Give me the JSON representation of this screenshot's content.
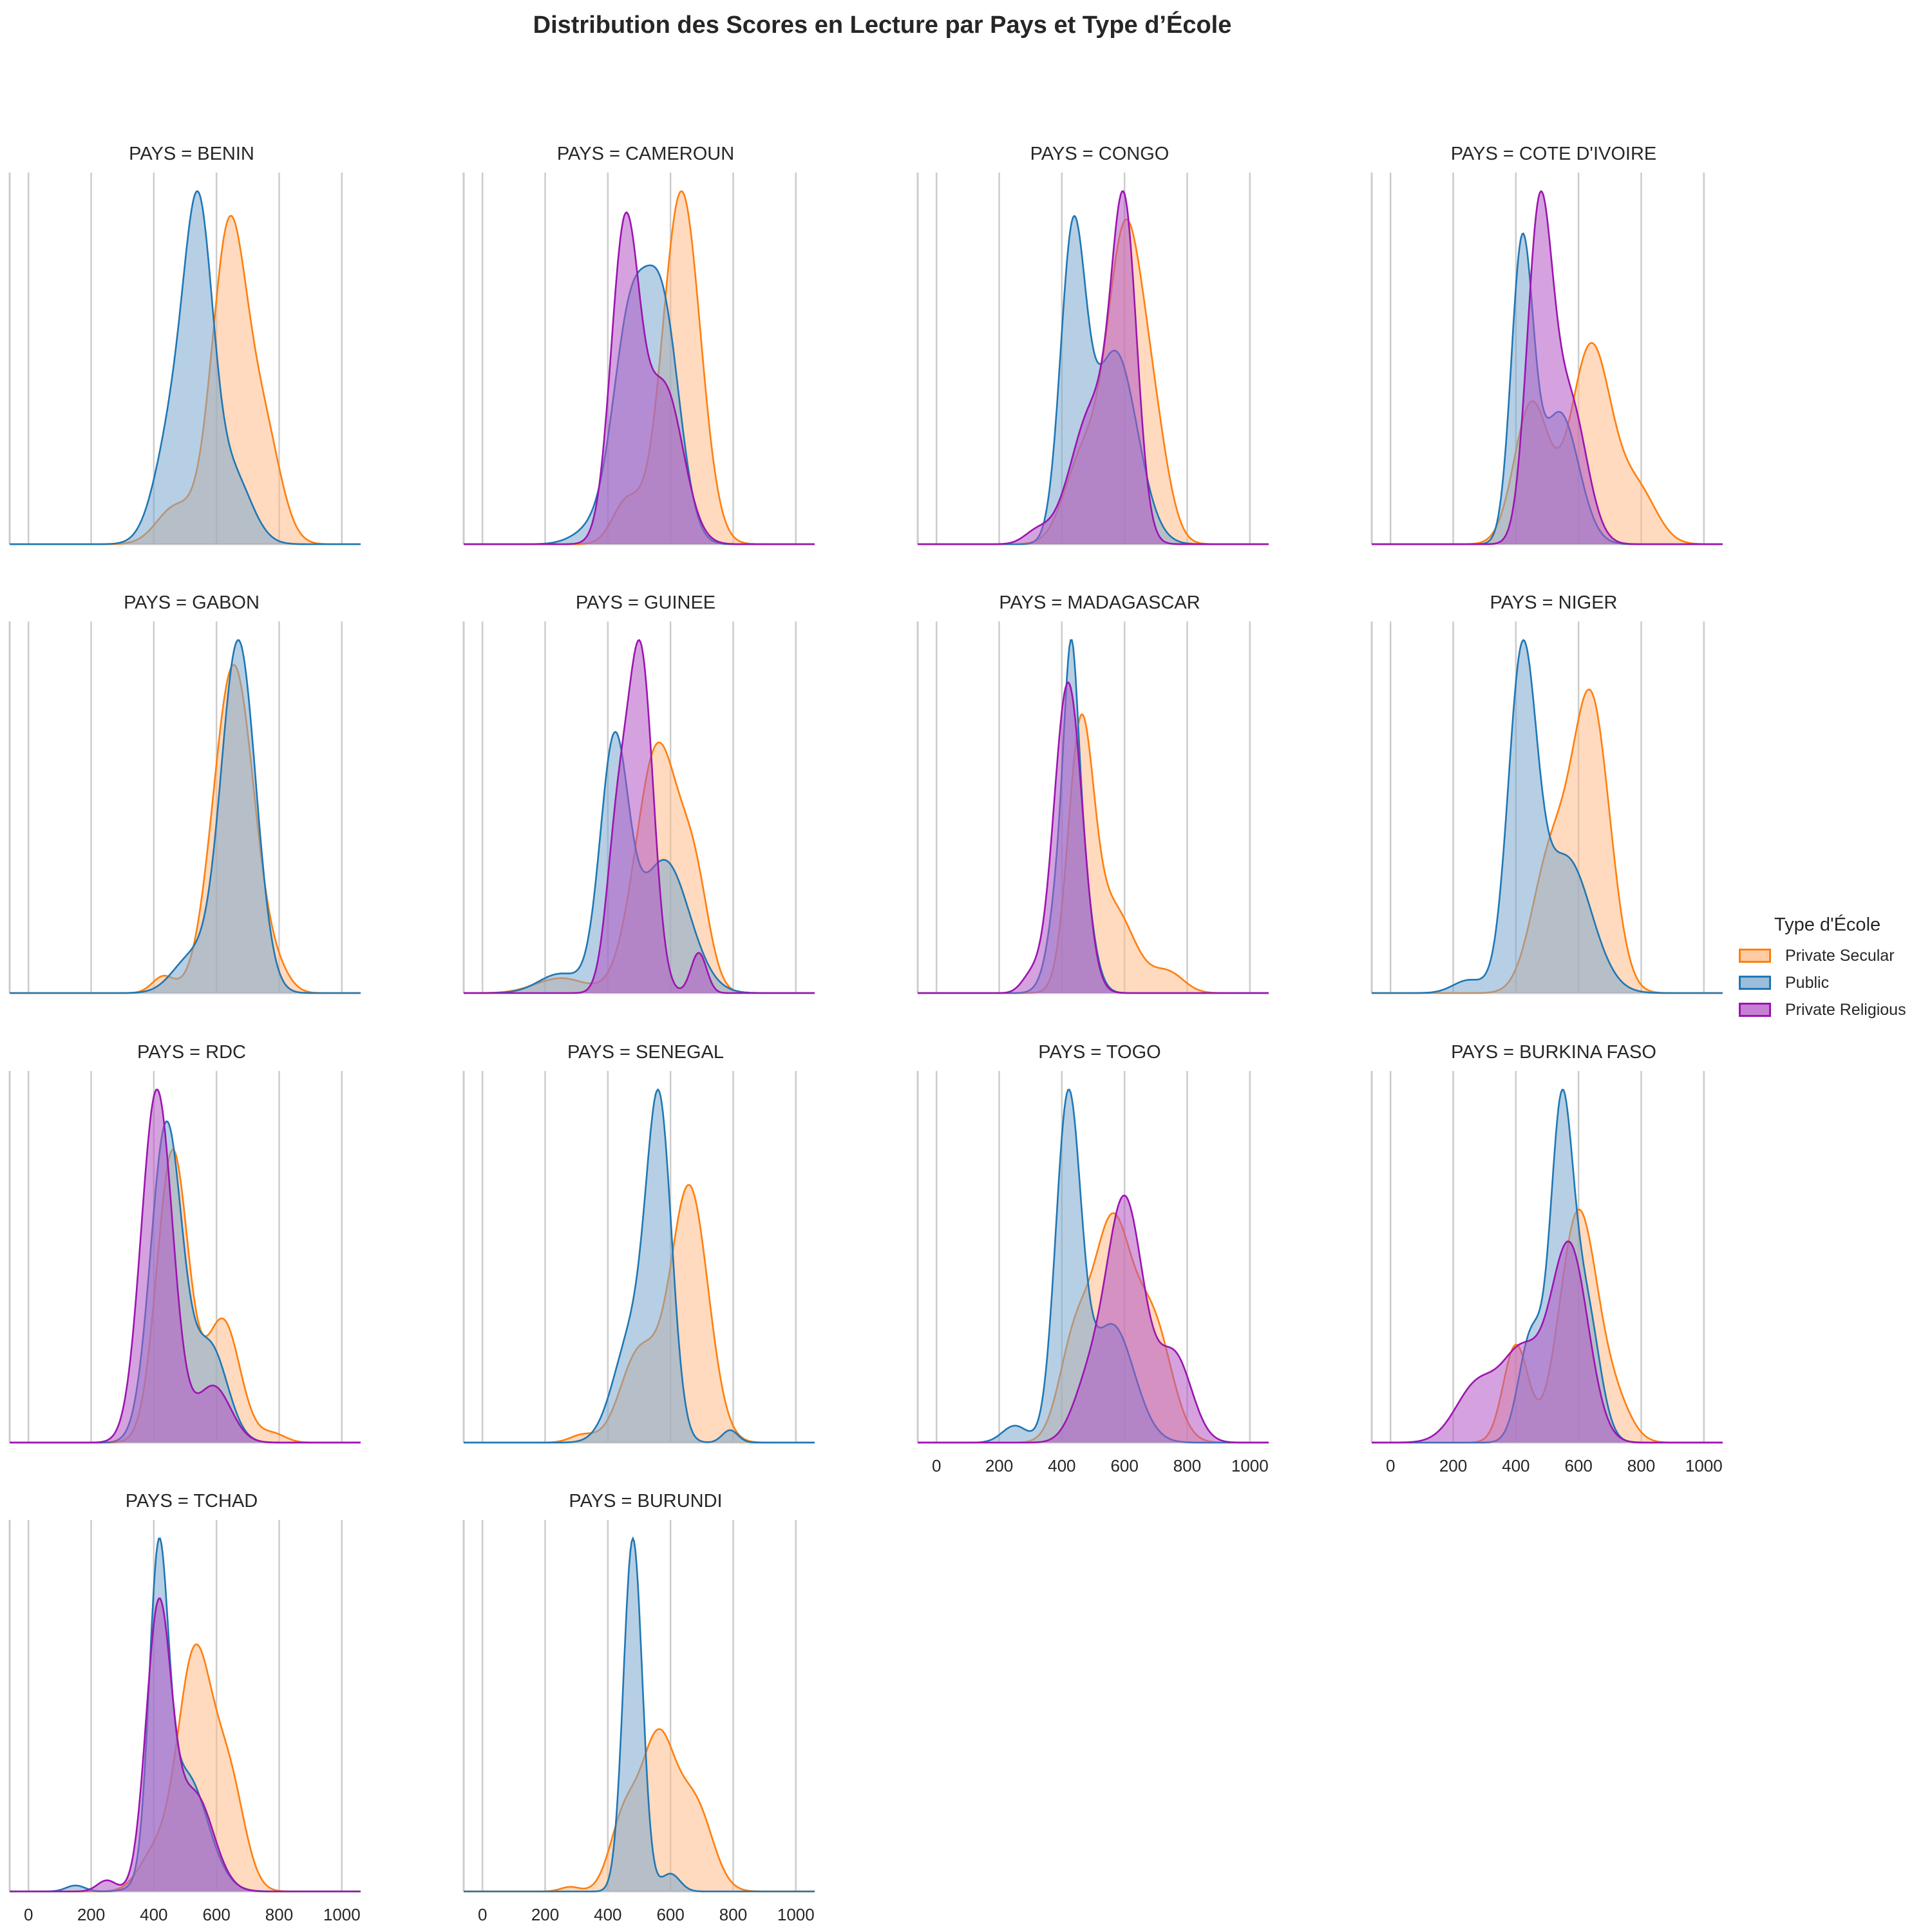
{
  "title": "Distribution des Scores en Lecture par Pays et Type d’École",
  "legend": {
    "title": "Type d'École",
    "items": [
      {
        "label": "Private Secular",
        "stroke": "#ff7f0e",
        "fill": "#ffbb88"
      },
      {
        "label": "Public",
        "stroke": "#1f77b4",
        "fill": "#7aa7cf"
      },
      {
        "label": "Private Religious",
        "stroke": "#9c14b0",
        "fill": "#b356c4"
      }
    ]
  },
  "chart_data": {
    "type": "area",
    "subtype": "kde-facet-grid",
    "title": "Distribution des Scores en Lecture par Pays et Type d’École",
    "facet_prefix": "PAYS = ",
    "xlabel": "",
    "ylabel": "",
    "xlim": [
      -60,
      1060
    ],
    "x_ticks": [
      0,
      200,
      400,
      600,
      800,
      1000
    ],
    "x_tick_labels": [
      "0",
      "200",
      "400",
      "600",
      "800",
      "1000"
    ],
    "grid": "vertical",
    "y_ticks_shown": false,
    "legend_position": "right",
    "series_order": [
      "Private Secular",
      "Public",
      "Private Religious"
    ],
    "note": "Densities described as mixtures of gaussian components [mean score, std, weight]; peak height relative within each panel (1 = tallest curve).",
    "panels": [
      {
        "country": "BENIN",
        "row": 0,
        "col": 0,
        "show_xticks": false,
        "series": [
          {
            "name": "Private Secular",
            "peak": 0.93,
            "components": [
              [
                640,
                55,
                1.0
              ],
              [
                750,
                55,
                0.35
              ],
              [
                470,
                60,
                0.12
              ]
            ]
          },
          {
            "name": "Public",
            "peak": 1.0,
            "components": [
              [
                545,
                45,
                1.0
              ],
              [
                470,
                60,
                0.45
              ],
              [
                650,
                60,
                0.25
              ]
            ]
          }
        ]
      },
      {
        "country": "CAMEROUN",
        "row": 0,
        "col": 1,
        "show_xticks": false,
        "series": [
          {
            "name": "Private Secular",
            "peak": 1.0,
            "components": [
              [
                635,
                60,
                1.0
              ],
              [
                460,
                45,
                0.12
              ]
            ]
          },
          {
            "name": "Public",
            "peak": 0.79,
            "components": [
              [
                470,
                55,
                0.9
              ],
              [
                575,
                55,
                0.95
              ],
              [
                350,
                60,
                0.06
              ]
            ]
          },
          {
            "name": "Private Religious",
            "peak": 0.94,
            "components": [
              [
                455,
                45,
                1.0
              ],
              [
                580,
                60,
                0.5
              ]
            ]
          }
        ]
      },
      {
        "country": "CONGO",
        "row": 0,
        "col": 2,
        "show_xticks": false,
        "series": [
          {
            "name": "Private Secular",
            "peak": 0.92,
            "components": [
              [
                600,
                55,
                1.0
              ],
              [
                690,
                50,
                0.35
              ],
              [
                470,
                60,
                0.3
              ]
            ]
          },
          {
            "name": "Public",
            "peak": 0.93,
            "components": [
              [
                435,
                40,
                1.0
              ],
              [
                570,
                70,
                0.65
              ]
            ]
          },
          {
            "name": "Private Religious",
            "peak": 1.0,
            "components": [
              [
                600,
                40,
                1.0
              ],
              [
                500,
                70,
                0.45
              ],
              [
                320,
                40,
                0.04
              ]
            ]
          }
        ]
      },
      {
        "country": "COTE D'IVOIRE",
        "row": 0,
        "col": 3,
        "show_xticks": false,
        "series": [
          {
            "name": "Private Secular",
            "peak": 0.57,
            "components": [
              [
                450,
                55,
                0.6
              ],
              [
                640,
                65,
                0.85
              ],
              [
                790,
                60,
                0.22
              ]
            ]
          },
          {
            "name": "Public",
            "peak": 0.88,
            "components": [
              [
                420,
                35,
                1.0
              ],
              [
                540,
                60,
                0.45
              ]
            ]
          },
          {
            "name": "Private Religious",
            "peak": 1.0,
            "components": [
              [
                475,
                40,
                1.0
              ],
              [
                570,
                55,
                0.45
              ]
            ]
          }
        ]
      },
      {
        "country": "GABON",
        "row": 1,
        "col": 0,
        "show_xticks": false,
        "series": [
          {
            "name": "Private Secular",
            "peak": 0.93,
            "components": [
              [
                655,
                65,
                1.0
              ],
              [
                430,
                35,
                0.05
              ],
              [
                800,
                40,
                0.04
              ]
            ]
          },
          {
            "name": "Public",
            "peak": 1.0,
            "components": [
              [
                670,
                55,
                1.0
              ],
              [
                520,
                60,
                0.1
              ]
            ]
          }
        ]
      },
      {
        "country": "GUINEE",
        "row": 1,
        "col": 1,
        "show_xticks": false,
        "series": [
          {
            "name": "Private Secular",
            "peak": 0.71,
            "components": [
              [
                560,
                70,
                1.0
              ],
              [
                680,
                45,
                0.35
              ],
              [
                250,
                80,
                0.06
              ]
            ]
          },
          {
            "name": "Public",
            "peak": 0.74,
            "components": [
              [
                420,
                45,
                1.0
              ],
              [
                580,
                80,
                0.55
              ],
              [
                250,
                70,
                0.08
              ]
            ]
          },
          {
            "name": "Private Religious",
            "peak": 1.0,
            "components": [
              [
                505,
                40,
                1.0
              ],
              [
                430,
                35,
                0.45
              ],
              [
                690,
                25,
                0.12
              ]
            ]
          }
        ]
      },
      {
        "country": "MADAGASCAR",
        "row": 1,
        "col": 2,
        "show_xticks": false,
        "series": [
          {
            "name": "Private Secular",
            "peak": 0.79,
            "components": [
              [
                460,
                40,
                1.0
              ],
              [
                560,
                70,
                0.35
              ],
              [
                740,
                50,
                0.08
              ]
            ]
          },
          {
            "name": "Public",
            "peak": 1.0,
            "components": [
              [
                430,
                20,
                0.5
              ],
              [
                430,
                45,
                0.85
              ]
            ]
          },
          {
            "name": "Private Religious",
            "peak": 0.88,
            "components": [
              [
                420,
                45,
                1.0
              ],
              [
                300,
                30,
                0.05
              ]
            ]
          }
        ]
      },
      {
        "country": "NIGER",
        "row": 1,
        "col": 3,
        "show_xticks": false,
        "series": [
          {
            "name": "Private Secular",
            "peak": 0.86,
            "components": [
              [
                640,
                60,
                1.0
              ],
              [
                510,
                60,
                0.45
              ]
            ]
          },
          {
            "name": "Public",
            "peak": 1.0,
            "components": [
              [
                420,
                45,
                1.0
              ],
              [
                560,
                80,
                0.42
              ],
              [
                250,
                50,
                0.04
              ]
            ]
          }
        ]
      },
      {
        "country": "RDC",
        "row": 2,
        "col": 0,
        "show_xticks": false,
        "series": [
          {
            "name": "Private Secular",
            "peak": 0.83,
            "components": [
              [
                460,
                50,
                1.0
              ],
              [
                620,
                55,
                0.42
              ],
              [
                780,
                40,
                0.03
              ]
            ]
          },
          {
            "name": "Public",
            "peak": 0.91,
            "components": [
              [
                440,
                50,
                1.0
              ],
              [
                580,
                55,
                0.3
              ]
            ]
          },
          {
            "name": "Private Religious",
            "peak": 1.0,
            "components": [
              [
                410,
                50,
                1.0
              ],
              [
                590,
                55,
                0.16
              ]
            ]
          }
        ]
      },
      {
        "country": "SENEGAL",
        "row": 2,
        "col": 1,
        "show_xticks": false,
        "series": [
          {
            "name": "Private Secular",
            "peak": 0.73,
            "components": [
              [
                660,
                60,
                1.0
              ],
              [
                500,
                60,
                0.35
              ],
              [
                320,
                40,
                0.03
              ]
            ]
          },
          {
            "name": "Public",
            "peak": 1.0,
            "components": [
              [
                565,
                40,
                1.0
              ],
              [
                480,
                60,
                0.35
              ],
              [
                790,
                25,
                0.04
              ]
            ]
          }
        ]
      },
      {
        "country": "TOGO",
        "row": 2,
        "col": 2,
        "show_xticks": true,
        "series": [
          {
            "name": "Private Secular",
            "peak": 0.65,
            "components": [
              [
                560,
                60,
                1.0
              ],
              [
                440,
                50,
                0.45
              ],
              [
                690,
                60,
                0.55
              ]
            ]
          },
          {
            "name": "Public",
            "peak": 1.0,
            "components": [
              [
                420,
                40,
                1.0
              ],
              [
                560,
                70,
                0.35
              ],
              [
                250,
                40,
                0.05
              ]
            ]
          },
          {
            "name": "Private Religious",
            "peak": 0.7,
            "components": [
              [
                600,
                60,
                1.0
              ],
              [
                760,
                55,
                0.35
              ],
              [
                480,
                50,
                0.2
              ]
            ]
          }
        ]
      },
      {
        "country": "BURKINA FASO",
        "row": 2,
        "col": 3,
        "show_xticks": true,
        "series": [
          {
            "name": "Private Secular",
            "peak": 0.66,
            "components": [
              [
                600,
                60,
                1.0
              ],
              [
                400,
                40,
                0.42
              ],
              [
                720,
                50,
                0.15
              ]
            ]
          },
          {
            "name": "Public",
            "peak": 1.0,
            "components": [
              [
                545,
                35,
                1.0
              ],
              [
                450,
                40,
                0.35
              ],
              [
                620,
                45,
                0.45
              ]
            ]
          },
          {
            "name": "Private Religious",
            "peak": 0.57,
            "components": [
              [
                570,
                60,
                1.0
              ],
              [
                420,
                60,
                0.42
              ],
              [
                280,
                70,
                0.3
              ]
            ]
          }
        ]
      },
      {
        "country": "TCHAD",
        "row": 3,
        "col": 0,
        "show_xticks": true,
        "series": [
          {
            "name": "Private Secular",
            "peak": 0.7,
            "components": [
              [
                530,
                55,
                1.0
              ],
              [
                640,
                50,
                0.45
              ],
              [
                400,
                50,
                0.15
              ]
            ]
          },
          {
            "name": "Public",
            "peak": 1.0,
            "components": [
              [
                415,
                30,
                1.0
              ],
              [
                500,
                70,
                0.4
              ],
              [
                150,
                30,
                0.02
              ]
            ]
          },
          {
            "name": "Private Religious",
            "peak": 0.83,
            "components": [
              [
                415,
                40,
                1.0
              ],
              [
                530,
                60,
                0.35
              ],
              [
                250,
                30,
                0.04
              ]
            ]
          }
        ]
      },
      {
        "country": "BURUNDI",
        "row": 3,
        "col": 1,
        "show_xticks": true,
        "series": [
          {
            "name": "Private Secular",
            "peak": 0.46,
            "components": [
              [
                560,
                55,
                1.0
              ],
              [
                680,
                55,
                0.55
              ],
              [
                450,
                45,
                0.45
              ],
              [
                280,
                30,
                0.03
              ]
            ]
          },
          {
            "name": "Public",
            "peak": 1.0,
            "components": [
              [
                480,
                30,
                1.0
              ],
              [
                600,
                30,
                0.05
              ]
            ]
          }
        ]
      }
    ]
  }
}
